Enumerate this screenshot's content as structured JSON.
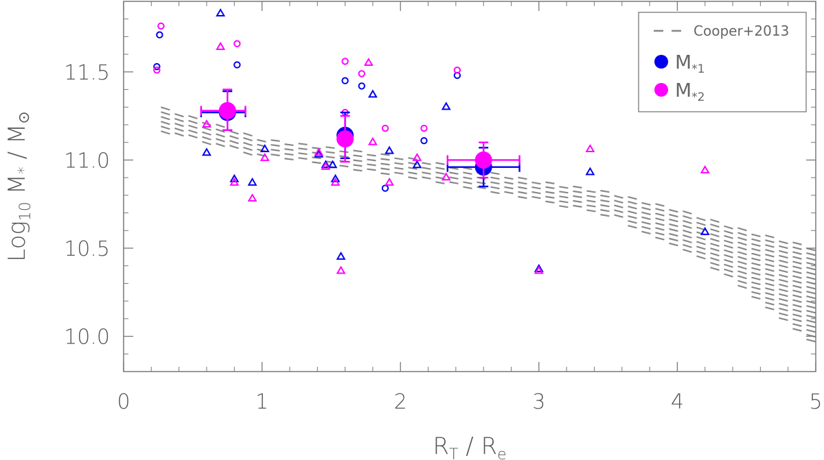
{
  "chart_data": {
    "type": "scatter",
    "title": "",
    "xlabel": {
      "main": "R",
      "sub1": "T",
      "mid": " / R",
      "sub2": "e"
    },
    "ylabel": {
      "prefix": "Log",
      "sub": "10",
      "mid": " M",
      "star": "*",
      "suffix": " / M",
      "sun": "⊙"
    },
    "xlim": [
      0,
      5
    ],
    "ylim": [
      9.8,
      11.9
    ],
    "xticks": [
      0,
      1,
      2,
      3,
      4,
      5
    ],
    "xtick_labels": [
      "0",
      "1",
      "2",
      "3",
      "4",
      "5"
    ],
    "yticks": [
      10.0,
      10.5,
      11.0,
      11.5
    ],
    "ytick_labels": [
      "10.0",
      "10.5",
      "11.0",
      "11.5"
    ],
    "grid": false,
    "legend_position": "top-right",
    "colors": {
      "m1": "#0000ee",
      "m2": "#ff00ff",
      "band": "#888888"
    },
    "legend": [
      {
        "label": "Cooper+2013",
        "marker": "dashed-line",
        "color": "#888888"
      },
      {
        "label": "M",
        "sub": "*1",
        "marker": "filled-circle",
        "color": "#0000ee"
      },
      {
        "label": "M",
        "sub": "*2",
        "marker": "filled-circle",
        "color": "#ff00ff"
      }
    ],
    "reference_band": {
      "name": "Cooper+2013",
      "x": [
        0.27,
        1.0,
        2.0,
        3.0,
        3.5,
        4.0,
        4.5,
        5.0
      ],
      "upper": [
        11.3,
        11.12,
        11.02,
        10.88,
        10.82,
        10.72,
        10.6,
        10.5
      ],
      "lower": [
        11.16,
        11.02,
        10.9,
        10.76,
        10.68,
        10.5,
        10.25,
        9.92
      ]
    },
    "series": [
      {
        "name": "M*1 open circles",
        "color": "#0000ee",
        "marker": "circle",
        "points": [
          [
            0.24,
            11.53
          ],
          [
            0.26,
            11.71
          ],
          [
            0.82,
            11.54
          ],
          [
            1.6,
            11.45
          ],
          [
            1.72,
            11.42
          ],
          [
            2.17,
            11.11
          ],
          [
            1.89,
            10.84
          ],
          [
            2.41,
            11.48
          ]
        ]
      },
      {
        "name": "M*2 open circles",
        "color": "#ff00ff",
        "marker": "circle",
        "points": [
          [
            0.24,
            11.51
          ],
          [
            0.27,
            11.76
          ],
          [
            0.82,
            11.66
          ],
          [
            1.6,
            11.56
          ],
          [
            1.72,
            11.49
          ],
          [
            1.6,
            11.27
          ],
          [
            1.89,
            11.18
          ],
          [
            2.17,
            11.18
          ],
          [
            2.41,
            11.51
          ]
        ]
      },
      {
        "name": "M*1 triangles",
        "color": "#0000ee",
        "marker": "triangle",
        "points": [
          [
            0.7,
            11.83
          ],
          [
            0.6,
            11.04
          ],
          [
            0.8,
            10.89
          ],
          [
            0.93,
            10.87
          ],
          [
            1.02,
            11.06
          ],
          [
            1.41,
            11.03
          ],
          [
            1.46,
            10.97
          ],
          [
            1.51,
            10.97
          ],
          [
            1.53,
            10.89
          ],
          [
            1.57,
            10.45
          ],
          [
            1.8,
            11.37
          ],
          [
            1.92,
            11.05
          ],
          [
            2.12,
            10.97
          ],
          [
            2.33,
            11.3
          ],
          [
            3.0,
            10.38
          ],
          [
            3.37,
            10.93
          ],
          [
            4.2,
            10.59
          ]
        ]
      },
      {
        "name": "M*2 triangles",
        "color": "#ff00ff",
        "marker": "triangle",
        "points": [
          [
            0.7,
            11.64
          ],
          [
            0.6,
            11.2
          ],
          [
            0.8,
            10.87
          ],
          [
            0.93,
            10.78
          ],
          [
            1.02,
            11.01
          ],
          [
            1.41,
            11.04
          ],
          [
            1.46,
            10.96
          ],
          [
            1.53,
            10.87
          ],
          [
            1.57,
            10.37
          ],
          [
            1.77,
            11.55
          ],
          [
            1.8,
            11.1
          ],
          [
            1.92,
            10.87
          ],
          [
            2.12,
            11.01
          ],
          [
            2.33,
            10.9
          ],
          [
            3.0,
            10.37
          ],
          [
            3.37,
            11.06
          ],
          [
            4.2,
            10.94
          ]
        ]
      },
      {
        "name": "M*1 binned",
        "color": "#0000ee",
        "marker": "big-circle",
        "points": [
          {
            "x": 0.75,
            "y": 11.27,
            "xerr": [
              0.19,
              0.13
            ],
            "yerr": [
              0.1,
              0.12
            ]
          },
          {
            "x": 1.6,
            "y": 11.14,
            "xerr": [
              0.0,
              0.0
            ],
            "yerr": [
              0.13,
              0.13
            ]
          },
          {
            "x": 2.6,
            "y": 10.96,
            "xerr": [
              0.26,
              0.26
            ],
            "yerr": [
              0.11,
              0.11
            ]
          }
        ]
      },
      {
        "name": "M*2 binned",
        "color": "#ff00ff",
        "marker": "big-circle",
        "points": [
          {
            "x": 0.75,
            "y": 11.28,
            "xerr": [
              0.19,
              0.13
            ],
            "yerr": [
              0.11,
              0.12
            ]
          },
          {
            "x": 1.6,
            "y": 11.12,
            "xerr": [
              0.0,
              0.0
            ],
            "yerr": [
              0.13,
              0.13
            ]
          },
          {
            "x": 2.6,
            "y": 11.0,
            "xerr": [
              0.26,
              0.26
            ],
            "yerr": [
              0.1,
              0.1
            ]
          }
        ]
      }
    ]
  }
}
